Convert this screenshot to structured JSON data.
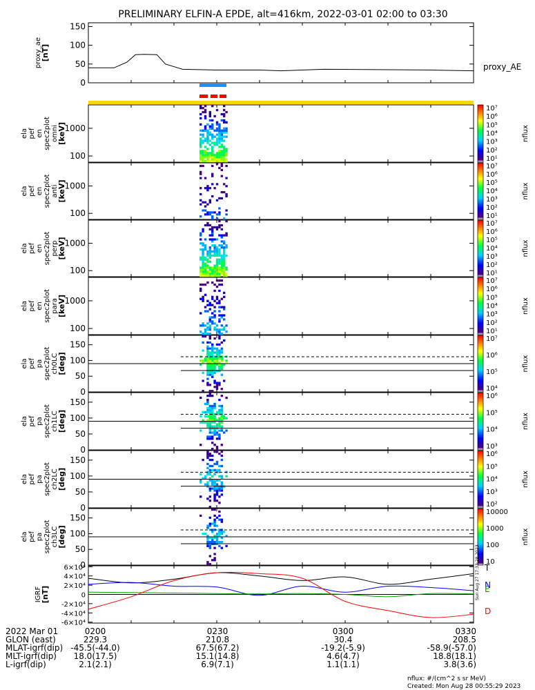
{
  "title": "PRELIMINARY ELFIN-A EPDE, alt=416km, 2022-03-01 02:00 to 03:30",
  "chart_data": [
    {
      "type": "line",
      "id": "proxy_ae",
      "ylabel": [
        "proxy_ae",
        "[nT]"
      ],
      "ylim": [
        0,
        160
      ],
      "yticks": [
        "0",
        "50",
        "100",
        "150"
      ],
      "yticks_v": [
        0,
        50,
        100,
        150
      ],
      "series": [
        {
          "name": "proxy_AE",
          "x": [
            0,
            6,
            9,
            11,
            13,
            16,
            18,
            22,
            30,
            40,
            45,
            55,
            70,
            80,
            90
          ],
          "y": [
            40,
            40,
            55,
            75,
            76,
            75,
            50,
            36,
            34,
            34,
            32,
            36,
            35,
            34,
            32
          ]
        }
      ]
    },
    {
      "type": "heatmap",
      "id": "en-omni",
      "ylabel": [
        "ela",
        "pef",
        "en",
        "spec2plot",
        "omni",
        "[keV]"
      ],
      "ytick_labels": [
        "100",
        "1000"
      ],
      "ytick_vals": [
        100,
        1000
      ],
      "yscale": "log",
      "ylim": [
        60,
        7000
      ],
      "colorbar": {
        "label": "nflux",
        "ticks": [
          "10¹",
          "10²",
          "10³",
          "10⁴",
          "10⁵",
          "10⁶",
          "10⁷"
        ]
      }
    },
    {
      "type": "heatmap",
      "id": "en-anti",
      "ylabel": [
        "ela",
        "pef",
        "en",
        "spec2plot",
        "anti",
        "[keV]"
      ],
      "ytick_labels": [
        "100",
        "1000"
      ],
      "ytick_vals": [
        100,
        1000
      ],
      "yscale": "log",
      "ylim": [
        60,
        7000
      ],
      "colorbar": {
        "label": "nflux",
        "ticks": [
          "10¹",
          "10²",
          "10³",
          "10⁴",
          "10⁵",
          "10⁶",
          "10⁷"
        ]
      }
    },
    {
      "type": "heatmap",
      "id": "en-perp",
      "ylabel": [
        "ela",
        "pef",
        "en",
        "spec2plot",
        "perp",
        "[keV]"
      ],
      "ytick_labels": [
        "100",
        "1000"
      ],
      "ytick_vals": [
        100,
        1000
      ],
      "yscale": "log",
      "ylim": [
        60,
        7000
      ],
      "colorbar": {
        "label": "nflux",
        "ticks": [
          "10¹",
          "10²",
          "10³",
          "10⁴",
          "10⁵",
          "10⁶",
          "10⁷"
        ]
      }
    },
    {
      "type": "heatmap",
      "id": "en-para",
      "ylabel": [
        "ela",
        "pef",
        "en",
        "spec2plot",
        "para",
        "[keV]"
      ],
      "ytick_labels": [
        "100",
        "1000"
      ],
      "ytick_vals": [
        100,
        1000
      ],
      "yscale": "log",
      "ylim": [
        60,
        7000
      ],
      "colorbar": {
        "label": "nflux",
        "ticks": [
          "10¹",
          "10²",
          "10³",
          "10⁴",
          "10⁵",
          "10⁶",
          "10⁷"
        ]
      }
    },
    {
      "type": "heatmap",
      "id": "pa-ch0",
      "ylabel": [
        "ela",
        "pef",
        "pa",
        "spec2plot",
        "ch0LC",
        "[deg]"
      ],
      "ytick_labels": [
        "0",
        "50",
        "100",
        "150"
      ],
      "ytick_vals": [
        0,
        50,
        100,
        150
      ],
      "yscale": "linear",
      "ylim": [
        0,
        180
      ],
      "lc_lines": [
        112,
        90,
        68
      ],
      "colorbar": {
        "label": "nflux",
        "ticks": [
          "10⁴",
          "10⁵",
          "10⁶",
          "10⁷"
        ]
      }
    },
    {
      "type": "heatmap",
      "id": "pa-ch1",
      "ylabel": [
        "ela",
        "pef",
        "pa",
        "spec2plot",
        "ch1LC",
        "[deg]"
      ],
      "ytick_labels": [
        "0",
        "50",
        "100",
        "150"
      ],
      "ytick_vals": [
        0,
        50,
        100,
        150
      ],
      "yscale": "linear",
      "ylim": [
        0,
        180
      ],
      "lc_lines": [
        112,
        90,
        68
      ],
      "colorbar": {
        "label": "nflux",
        "ticks": [
          "10³",
          "10⁴",
          "10⁵",
          "10⁶"
        ]
      }
    },
    {
      "type": "heatmap",
      "id": "pa-ch2",
      "ylabel": [
        "ela",
        "pef",
        "pa",
        "spec2plot",
        "ch2LC",
        "[deg]"
      ],
      "ytick_labels": [
        "0",
        "50",
        "100",
        "150"
      ],
      "ytick_vals": [
        0,
        50,
        100,
        150
      ],
      "yscale": "linear",
      "ylim": [
        0,
        180
      ],
      "lc_lines": [
        112,
        90,
        68
      ],
      "colorbar": {
        "label": "nflux",
        "ticks": [
          "10²",
          "10³",
          "10⁴",
          "10⁵",
          "10⁶"
        ]
      }
    },
    {
      "type": "heatmap",
      "id": "pa-ch3",
      "ylabel": [
        "ela",
        "pef",
        "pa",
        "spec2plot",
        "ch3LC",
        "[deg]"
      ],
      "ytick_labels": [
        "0",
        "50",
        "100",
        "150"
      ],
      "ytick_vals": [
        0,
        50,
        100,
        150
      ],
      "yscale": "linear",
      "ylim": [
        0,
        180
      ],
      "lc_lines": [
        112,
        90,
        68
      ],
      "colorbar": {
        "label": "nflux",
        "ticks": [
          "10",
          "100",
          "1000",
          "10000"
        ]
      }
    },
    {
      "type": "line",
      "id": "igrf",
      "ylabel": [
        "IGRF",
        "[nT]"
      ],
      "ylim": [
        -62000,
        62000
      ],
      "ytick_labels": [
        "-6×10⁴",
        "-4×10⁴",
        "-2×10⁴",
        "0",
        "2×10⁴",
        "4×10⁴",
        "6×10⁴"
      ],
      "ytick_vals": [
        -60000,
        -40000,
        -20000,
        0,
        20000,
        40000,
        60000
      ],
      "series": [
        {
          "name": "T",
          "color": "#000000",
          "x": [
            0,
            10,
            20,
            30,
            40,
            50,
            60,
            70,
            80,
            90
          ],
          "y": [
            35000,
            25000,
            33000,
            47000,
            40000,
            30000,
            38000,
            22000,
            33000,
            45000
          ]
        },
        {
          "name": "N",
          "color": "#0000ff",
          "x": [
            0,
            10,
            20,
            30,
            40,
            50,
            60,
            70,
            80,
            90
          ],
          "y": [
            22000,
            26000,
            18000,
            16000,
            -2000,
            18000,
            5000,
            18000,
            15000,
            8000
          ]
        },
        {
          "name": "E",
          "color": "#00a000",
          "x": [
            0,
            10,
            20,
            30,
            40,
            50,
            60,
            70,
            80,
            90
          ],
          "y": [
            5000,
            4000,
            3000,
            2000,
            1000,
            2000,
            0,
            -5000,
            2000,
            1000
          ]
        },
        {
          "name": "D",
          "color": "#ff0000",
          "x": [
            0,
            10,
            20,
            30,
            40,
            50,
            60,
            70,
            80,
            90
          ],
          "y": [
            -32000,
            -5000,
            30000,
            47000,
            45000,
            35000,
            -15000,
            -35000,
            -50000,
            -43000
          ]
        }
      ]
    }
  ],
  "footer": {
    "rows": [
      {
        "label": "2022 Mar 01",
        "values": [
          "0200",
          "0230",
          "0300",
          "0330"
        ]
      },
      {
        "label": "GLON (east)",
        "values": [
          "229.3",
          "210.8",
          "30.4",
          "208.5"
        ]
      },
      {
        "label": "MLAT-igrf(dip)",
        "values": [
          "-45.5(-44.0)",
          "67.5(67.2)",
          "-19.2(-5.9)",
          "-58.9(-57.0)"
        ]
      },
      {
        "label": "MLT-igrf(dip)",
        "values": [
          "18.0(17.5)",
          "15.1(14.8)",
          "4.6(4.7)",
          "18.8(18.1)"
        ]
      },
      {
        "label": "L-igrf(dip)",
        "values": [
          "2.1(2.1)",
          "6.9(7.1)",
          "1.1(1.1)",
          "3.8(3.6)"
        ]
      }
    ],
    "units_note": "nflux: #/(cm^2 s sr MeV)",
    "created": "Created: Mon Aug 28 00:55:29 2023",
    "side_stamp": "Sun Aug 27 17:33:28 2023"
  }
}
